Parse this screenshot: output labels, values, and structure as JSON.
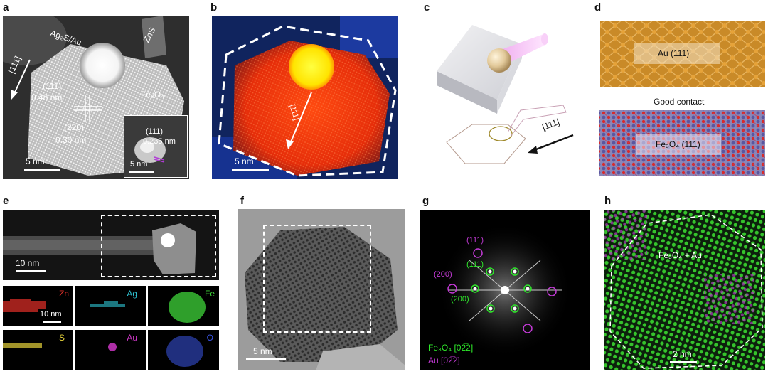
{
  "panels": {
    "a": {
      "label": "a",
      "ag2s_au": "Ag₂S/Au",
      "zns": "ZnS",
      "direction": "[111]",
      "plane_111": "(111)",
      "d_111": "0.48 nm",
      "fe3o4": "Fe₃O₄",
      "plane_220": "(220)",
      "d_220": "0.30 nm",
      "scale": "5 nm",
      "inset_plane": "(111)",
      "inset_d": "0.235 nm",
      "inset_scale": "5 nm"
    },
    "b": {
      "label": "b",
      "direction": "[111]",
      "scale": "5 nm"
    },
    "c": {
      "label": "c",
      "direction": "[111]"
    },
    "d": {
      "label": "d",
      "au": "Au (111)",
      "contact": "Good contact",
      "fe3o4": "Fe₃O₄ (111)"
    },
    "e": {
      "label": "e",
      "scale": "10 nm",
      "map_scale": "10 nm",
      "maps": [
        "Zn",
        "Ag",
        "Fe",
        "S",
        "Au",
        "O"
      ],
      "map_colors": [
        "#e0302a",
        "#2fc6d6",
        "#3fd43a",
        "#e6d23a",
        "#d83ad0",
        "#3a55e6"
      ]
    },
    "f": {
      "label": "f",
      "scale": "5 nm"
    },
    "g": {
      "label": "g",
      "spots": [
        "(111)",
        "(111)",
        "(200)",
        "(200)"
      ],
      "legend_fe": "Fe₃O₄ [02̅2]",
      "legend_au": "Au [02̅2]"
    },
    "h": {
      "label": "h",
      "composite": "Fe₃O₄ + Au",
      "scale": "2 nm"
    }
  }
}
